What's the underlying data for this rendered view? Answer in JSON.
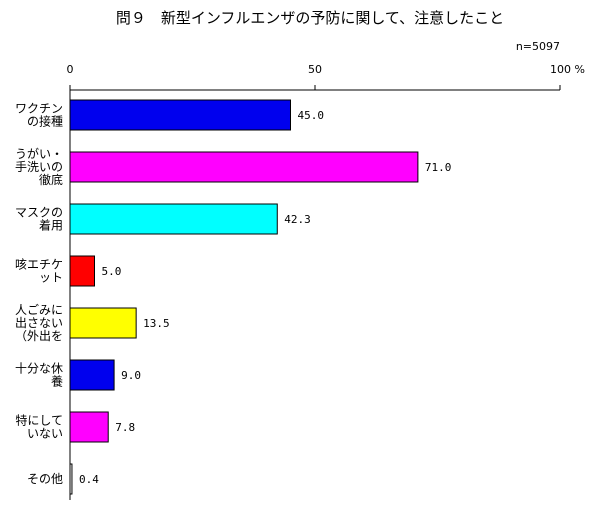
{
  "chart_data": {
    "type": "bar",
    "orientation": "horizontal",
    "title": "問９　新型インフルエンザの予防に関して、注意したこと",
    "sample_note": "n=5097",
    "x_unit": "%",
    "xlim": [
      0,
      100
    ],
    "x_ticks": [
      0,
      50,
      100
    ],
    "categories": [
      [
        "ワクチン",
        "の接種"
      ],
      [
        "うがい・",
        "手洗いの",
        "徹底"
      ],
      [
        "マスクの",
        "着用"
      ],
      [
        "咳エチケ",
        "ット"
      ],
      [
        "人ごみに",
        "出さない",
        "（外出を"
      ],
      [
        "十分な休",
        "養"
      ],
      [
        "特にして",
        "いない"
      ],
      [
        "その他"
      ]
    ],
    "values": [
      45.0,
      71.0,
      42.3,
      5.0,
      13.5,
      9.0,
      7.8,
      0.4
    ],
    "value_labels": [
      "45.0",
      "71.0",
      "42.3",
      "5.0",
      "13.5",
      "9.0",
      "7.8",
      "0.4"
    ],
    "colors": [
      "#0000EE",
      "#FF00FF",
      "#00FFFF",
      "#FF0000",
      "#FFFF00",
      "#0000EE",
      "#FF00FF",
      "#FFFFFF"
    ]
  }
}
